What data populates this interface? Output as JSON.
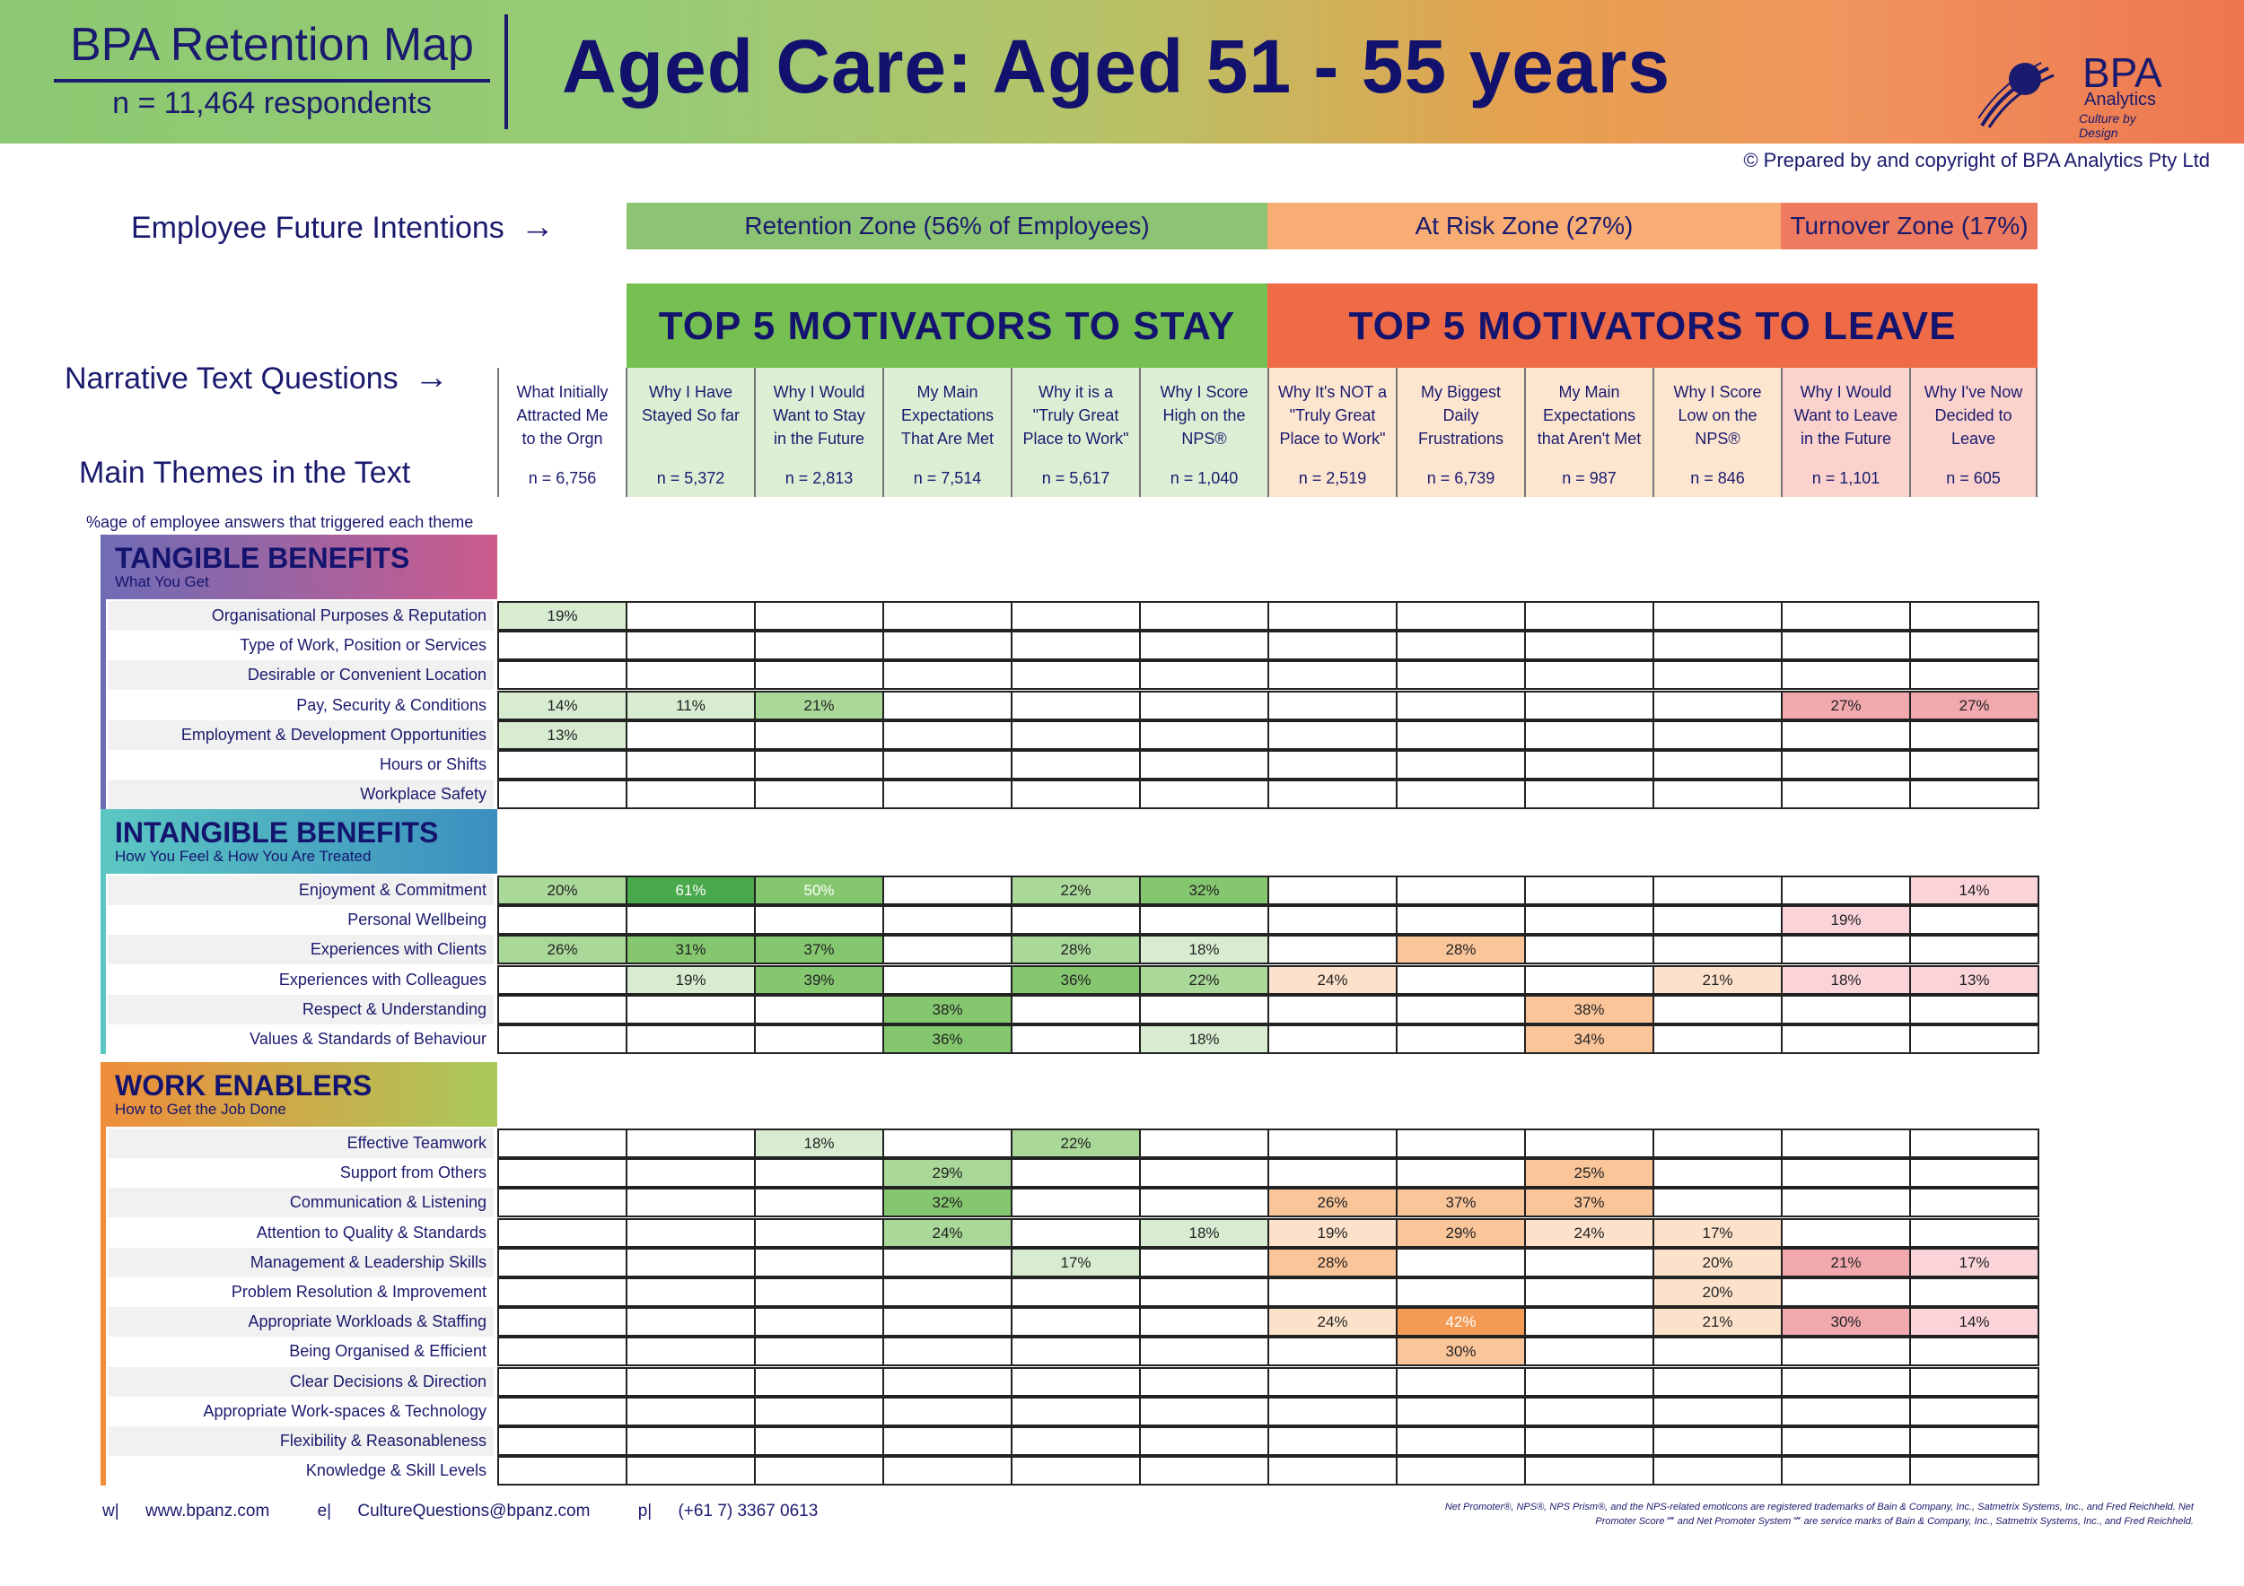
{
  "header": {
    "brand_title": "BPA Retention Map",
    "respondents": "n = 11,464 respondents",
    "main_title": "Aged Care: Aged 51 - 55 years",
    "logo_name": "BPA",
    "logo_sub": "Analytics",
    "logo_tag": "Culture by Design"
  },
  "copyright": "© Prepared by and copyright of BPA Analytics Pty Ltd",
  "labels": {
    "future_intentions": "Employee Future Intentions",
    "narrative": "Narrative Text Questions",
    "main_themes": "Main Themes in the Text",
    "arrow": "→",
    "note": "%age of employee answers that triggered each theme"
  },
  "zones": [
    {
      "label": "Retention Zone (56% of Employees)",
      "color": "#8dc473"
    },
    {
      "label": "At Risk Zone (27%)",
      "color": "#f8ad74"
    },
    {
      "label": "Turnover Zone (17%)",
      "color": "#ee7a5f"
    }
  ],
  "banners": [
    {
      "label": "TOP 5 MOTIVATORS TO STAY",
      "color": "#76c052"
    },
    {
      "label": "TOP 5 MOTIVATORS TO LEAVE",
      "color": "#ef6b46"
    }
  ],
  "colors": {
    "stay_light": "#d7ecd0",
    "stay_mid": "#a9d898",
    "stay_mid2": "#85c76f",
    "stay_dark": "#4aa94a",
    "risk_light": "#fde2cb",
    "risk_mid": "#fbc59a",
    "risk_dark": "#f39a54",
    "turn_light": "#fad4d8",
    "turn_mid": "#f2a9ad",
    "q_first": "#ffffff",
    "q_stay": "#dcefd4",
    "q_risk": "#fde6d0",
    "q_turn": "#fbd3cc"
  },
  "chart_data": {
    "type": "heatmap",
    "title": "Aged Care: Aged 51 - 55 years",
    "columns": [
      {
        "question": "What Initially\nAttracted Me\nto the Orgn",
        "n": "n = 6,756",
        "group": "first"
      },
      {
        "question": "Why I Have\nStayed So far",
        "n": "n = 5,372",
        "group": "stay"
      },
      {
        "question": "Why I Would\nWant to Stay\nin the Future",
        "n": "n = 2,813",
        "group": "stay"
      },
      {
        "question": "My Main\nExpectations\nThat Are Met",
        "n": "n = 7,514",
        "group": "stay"
      },
      {
        "question": "Why it is a\n\"Truly Great\nPlace to Work\"",
        "n": "n = 5,617",
        "group": "stay"
      },
      {
        "question": "Why I Score\nHigh on the\nNPS®",
        "n": "n = 1,040",
        "group": "stay"
      },
      {
        "question": "Why It's NOT a\n\"Truly Great\nPlace to Work\"",
        "n": "n = 2,519",
        "group": "risk"
      },
      {
        "question": "My Biggest\nDaily\nFrustrations",
        "n": "n = 6,739",
        "group": "risk"
      },
      {
        "question": "My Main\nExpectations\nthat Aren't Met",
        "n": "n = 987",
        "group": "risk"
      },
      {
        "question": "Why I Score\nLow on the\nNPS®",
        "n": "n = 846",
        "group": "risk"
      },
      {
        "question": "Why I Would\nWant to Leave\nin the Future",
        "n": "n = 1,101",
        "group": "turn"
      },
      {
        "question": "Why I've Now\nDecided to\nLeave",
        "n": "n = 605",
        "group": "turn"
      }
    ],
    "categories": [
      {
        "name": "TANGIBLE BENEFITS",
        "subtitle": "What You Get",
        "gradient": [
          "#6f6cb6",
          "#cc5b8c"
        ],
        "bar": "#6f6cb6",
        "rows": [
          {
            "theme": "Organisational Purposes & Reputation",
            "values": [
              19,
              null,
              null,
              null,
              null,
              null,
              null,
              null,
              null,
              null,
              null,
              null
            ]
          },
          {
            "theme": "Type of Work, Position or Services",
            "values": [
              null,
              null,
              null,
              null,
              null,
              null,
              null,
              null,
              null,
              null,
              null,
              null
            ]
          },
          {
            "theme": "Desirable or Convenient Location",
            "values": [
              null,
              null,
              null,
              null,
              null,
              null,
              null,
              null,
              null,
              null,
              null,
              null
            ]
          },
          {
            "theme": "Pay, Security & Conditions",
            "values": [
              14,
              11,
              21,
              null,
              null,
              null,
              null,
              null,
              null,
              null,
              27,
              27
            ]
          },
          {
            "theme": "Employment & Development Opportunities",
            "values": [
              13,
              null,
              null,
              null,
              null,
              null,
              null,
              null,
              null,
              null,
              null,
              null
            ]
          },
          {
            "theme": "Hours or Shifts",
            "values": [
              null,
              null,
              null,
              null,
              null,
              null,
              null,
              null,
              null,
              null,
              null,
              null
            ]
          },
          {
            "theme": "Workplace Safety",
            "values": [
              null,
              null,
              null,
              null,
              null,
              null,
              null,
              null,
              null,
              null,
              null,
              null
            ]
          }
        ]
      },
      {
        "name": "INTANGIBLE BENEFITS",
        "subtitle": "How You Feel & How You Are Treated",
        "gradient": [
          "#5cc7c2",
          "#3b8fc0"
        ],
        "bar": "#5cc7c2",
        "rows": [
          {
            "theme": "Enjoyment & Commitment",
            "values": [
              20,
              61,
              50,
              null,
              22,
              32,
              null,
              null,
              null,
              null,
              null,
              14
            ]
          },
          {
            "theme": "Personal Wellbeing",
            "values": [
              null,
              null,
              null,
              null,
              null,
              null,
              null,
              null,
              null,
              null,
              19,
              null
            ]
          },
          {
            "theme": "Experiences with Clients",
            "values": [
              26,
              31,
              37,
              null,
              28,
              18,
              null,
              28,
              null,
              null,
              null,
              null
            ]
          },
          {
            "theme": "Experiences with Colleagues",
            "values": [
              null,
              19,
              39,
              null,
              36,
              22,
              24,
              null,
              null,
              21,
              18,
              13
            ]
          },
          {
            "theme": "Respect & Understanding",
            "values": [
              null,
              null,
              null,
              38,
              null,
              null,
              null,
              null,
              38,
              null,
              null,
              null
            ]
          },
          {
            "theme": "Values & Standards of Behaviour",
            "values": [
              null,
              null,
              null,
              36,
              null,
              18,
              null,
              null,
              34,
              null,
              null,
              null
            ]
          }
        ]
      },
      {
        "name": "WORK ENABLERS",
        "subtitle": "How to Get the Job Done",
        "gradient": [
          "#ef8d3a",
          "#a9c95a"
        ],
        "bar": "#ef8d3a",
        "rows": [
          {
            "theme": "Effective Teamwork",
            "values": [
              null,
              null,
              18,
              null,
              22,
              null,
              null,
              null,
              null,
              null,
              null,
              null
            ]
          },
          {
            "theme": "Support from Others",
            "values": [
              null,
              null,
              null,
              29,
              null,
              null,
              null,
              null,
              25,
              null,
              null,
              null
            ]
          },
          {
            "theme": "Communication & Listening",
            "values": [
              null,
              null,
              null,
              32,
              null,
              null,
              26,
              37,
              37,
              null,
              null,
              null
            ]
          },
          {
            "theme": "Attention to Quality & Standards",
            "values": [
              null,
              null,
              null,
              24,
              null,
              18,
              19,
              29,
              24,
              17,
              null,
              null
            ]
          },
          {
            "theme": "Management & Leadership Skills",
            "values": [
              null,
              null,
              null,
              null,
              17,
              null,
              28,
              null,
              null,
              20,
              21,
              17
            ]
          },
          {
            "theme": "Problem Resolution & Improvement",
            "values": [
              null,
              null,
              null,
              null,
              null,
              null,
              null,
              null,
              null,
              20,
              null,
              null
            ]
          },
          {
            "theme": "Appropriate Workloads & Staffing",
            "values": [
              null,
              null,
              null,
              null,
              null,
              null,
              24,
              42,
              null,
              21,
              30,
              14
            ]
          },
          {
            "theme": "Being Organised & Efficient",
            "values": [
              null,
              null,
              null,
              null,
              null,
              null,
              null,
              30,
              null,
              null,
              null,
              null
            ]
          },
          {
            "theme": "Clear Decisions & Direction",
            "values": [
              null,
              null,
              null,
              null,
              null,
              null,
              null,
              null,
              null,
              null,
              null,
              null
            ]
          },
          {
            "theme": "Appropriate Work-spaces & Technology",
            "values": [
              null,
              null,
              null,
              null,
              null,
              null,
              null,
              null,
              null,
              null,
              null,
              null
            ]
          },
          {
            "theme": "Flexibility & Reasonableness",
            "values": [
              null,
              null,
              null,
              null,
              null,
              null,
              null,
              null,
              null,
              null,
              null,
              null
            ]
          },
          {
            "theme": "Knowledge & Skill Levels",
            "values": [
              null,
              null,
              null,
              null,
              null,
              null,
              null,
              null,
              null,
              null,
              null,
              null
            ]
          }
        ]
      }
    ]
  },
  "footer": {
    "web_label": "w|",
    "web": "www.bpanz.com",
    "email_label": "e|",
    "email": "CultureQuestions@bpanz.com",
    "phone_label": "p|",
    "phone": "(+61 7) 3367 0613",
    "disclaimer": "Net Promoter®, NPS®, NPS Prism®, and the NPS-related emoticons are registered trademarks of Bain & Company, Inc., Satmetrix Systems, Inc., and Fred Reichheld. Net Promoter Score℠ and Net Promoter System℠ are service marks of Bain & Company, Inc., Satmetrix Systems, Inc., and Fred Reichheld."
  }
}
